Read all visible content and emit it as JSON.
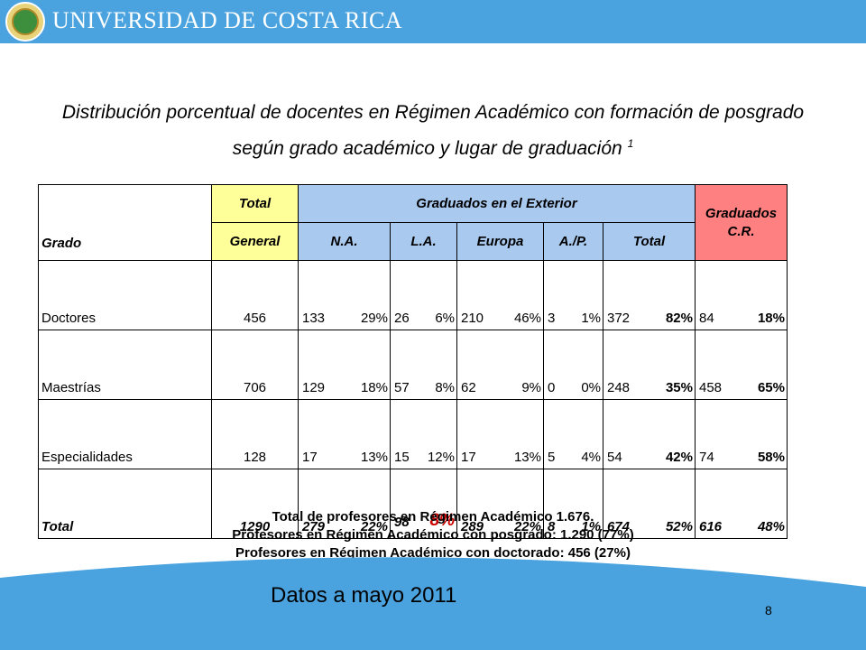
{
  "header": {
    "brand_main": "UNIVERSIDAD DE COSTA RICA"
  },
  "title": {
    "text": "Distribución porcentual de docentes en Régimen Académico con formación de posgrado según grado académico y lugar de graduación",
    "footnote_mark": "1"
  },
  "table": {
    "headers": {
      "grado": "Grado",
      "total": "Total",
      "general": "General",
      "exterior": "Graduados en el Exterior",
      "na": "N.A.",
      "la": "L.A.",
      "europa": "Europa",
      "ap": "A./P.",
      "ext_total": "Total",
      "cr": "Graduados C.R."
    },
    "rows": [
      {
        "name": "Doctores",
        "total": "456",
        "na": [
          "133",
          "29%"
        ],
        "la": [
          "26",
          "6%"
        ],
        "eu": [
          "210",
          "46%"
        ],
        "ap": [
          "3",
          "1%"
        ],
        "ext": [
          "372",
          "82%"
        ],
        "cr": [
          "84",
          "18%"
        ]
      },
      {
        "name": "Maestrías",
        "total": "706",
        "na": [
          "129",
          "18%"
        ],
        "la": [
          "57",
          "8%"
        ],
        "eu": [
          "62",
          "9%"
        ],
        "ap": [
          "0",
          "0%"
        ],
        "ext": [
          "248",
          "35%"
        ],
        "cr": [
          "458",
          "65%"
        ]
      },
      {
        "name": "Especialidades",
        "total": "128",
        "na": [
          "17",
          "13%"
        ],
        "la": [
          "15",
          "12%"
        ],
        "eu": [
          "17",
          "13%"
        ],
        "ap": [
          "5",
          "4%"
        ],
        "ext": [
          "54",
          "42%"
        ],
        "cr": [
          "74",
          "58%"
        ]
      },
      {
        "name": "Total",
        "total": "1290",
        "na": [
          "279",
          "22%"
        ],
        "la": [
          "98",
          "8%"
        ],
        "eu": [
          "289",
          "22%"
        ],
        "ap": [
          "8",
          "1%"
        ],
        "ext": [
          "674",
          "52%"
        ],
        "cr": [
          "616",
          "48%"
        ]
      }
    ]
  },
  "notes": [
    "Total de profesores en Régimen Académico 1.676.",
    "Profesores en Régimen Académico con posgrado: 1.290 (77%)",
    "Profesores en Régimen Académico con doctorado: 456 (27%)"
  ],
  "footer": {
    "date": "Datos a mayo 2011",
    "page": "8"
  },
  "colors": {
    "header_bar": "#4aa3df",
    "yellow": "#ffff99",
    "blue": "#a9c9ef",
    "pink": "#ff8080",
    "accent_red": "#cc0000"
  }
}
